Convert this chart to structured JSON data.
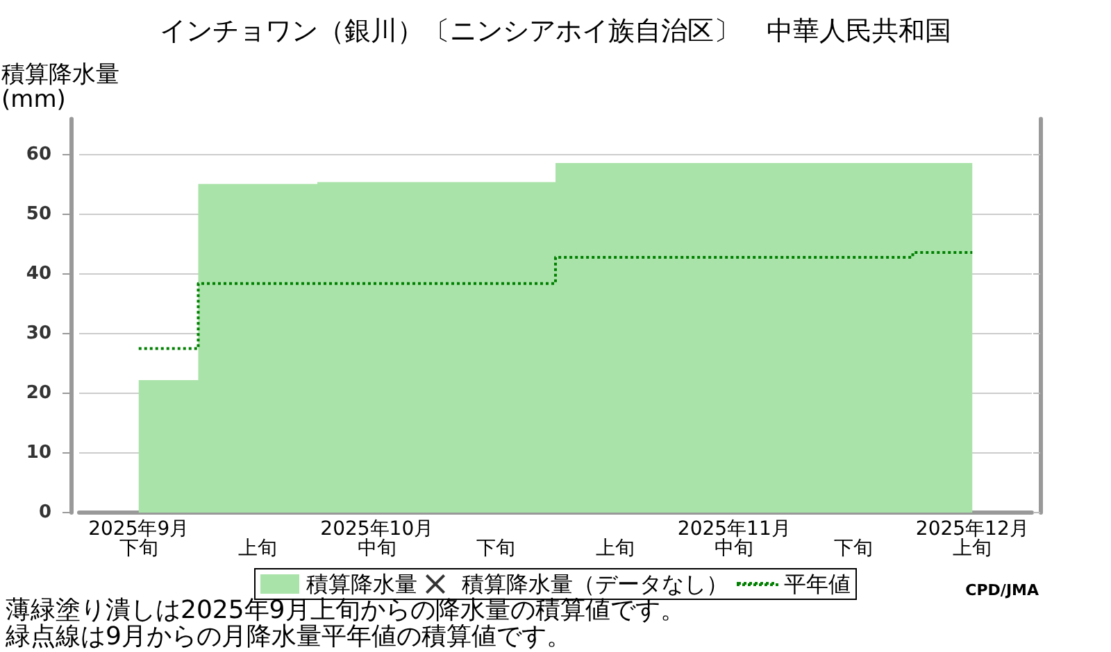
{
  "chart_data": {
    "type": "area",
    "title": "インチョワン（銀川）〔ニンシアホイ族自治区〕　中華人民共和国",
    "ylabel": "積算降水量(mm)",
    "categories": [
      "2025年9月下旬",
      "上旬",
      "2025年10月中旬",
      "下旬",
      "上旬",
      "2025年11月中旬",
      "下旬",
      "2025年12月上旬"
    ],
    "series": [
      {
        "name": "積算降水量",
        "color": "#aae3aa",
        "values": [
          22.2,
          55.1,
          55.4,
          55.4,
          58.6,
          58.6,
          58.6,
          58.6
        ]
      },
      {
        "name": "積算降水量（データなし）",
        "type": "scatter",
        "color": "#000000",
        "marker": "cross",
        "values": [
          null,
          null,
          null,
          null,
          null,
          null,
          null,
          null
        ]
      },
      {
        "name": "平年値",
        "type": "step",
        "color": "#008000",
        "line_style": "dotted",
        "values": [
          27.5,
          38.4,
          38.4,
          38.4,
          42.8,
          42.8,
          42.8,
          43.6
        ]
      }
    ],
    "ylim": [
      0,
      66
    ],
    "yticks": [
      0,
      10,
      20,
      30,
      40,
      50,
      60
    ],
    "grid": "y",
    "legend": "bottom",
    "annotations": [
      "CPD/JMA",
      "薄緑塗り潰しは2025年9月上旬からの降水量の積算値です。",
      "緑点線は9月からの月降水量平年値の積算値です。"
    ]
  }
}
